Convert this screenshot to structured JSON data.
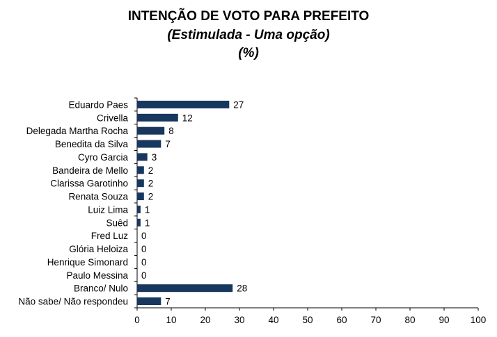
{
  "chart_data": {
    "type": "bar",
    "orientation": "horizontal",
    "title": "INTENÇÃO DE VOTO PARA PREFEITO",
    "subtitle": "(Estimulada - Uma opção)",
    "unit": "(%)",
    "categories": [
      "Eduardo Paes",
      "Crivella",
      "Delegada Martha Rocha",
      "Benedita da Silva",
      "Cyro Garcia",
      "Bandeira de Mello",
      "Clarissa Garotinho",
      "Renata Souza",
      "Luiz Lima",
      "Suêd",
      "Fred Luz",
      "Glória Heloiza",
      "Henrique Simonard",
      "Paulo Messina",
      "Branco/ Nulo",
      "Não sabe/ Não respondeu"
    ],
    "values": [
      27,
      12,
      8,
      7,
      3,
      2,
      2,
      2,
      1,
      1,
      0,
      0,
      0,
      0,
      28,
      7
    ],
    "xlim": [
      0,
      100
    ],
    "xticks": [
      "0",
      "10",
      "20",
      "30",
      "40",
      "50",
      "60",
      "70",
      "80",
      "90",
      "100"
    ],
    "bar_color": "#17375e",
    "grid": false,
    "legend": "none"
  }
}
